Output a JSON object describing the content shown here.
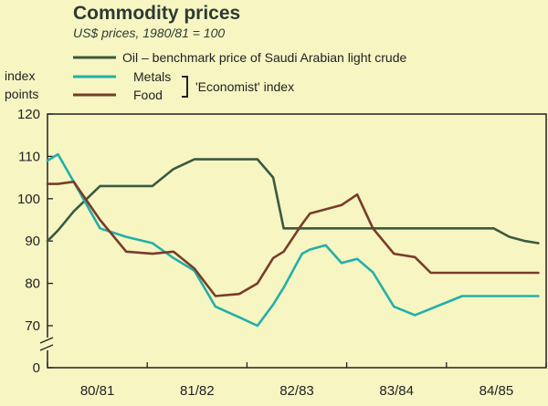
{
  "chart_data": {
    "type": "line",
    "title": "Commodity prices",
    "subtitle": "US$ prices, 1980/81 = 100",
    "ylabel_line1": "index",
    "ylabel_line2": "points",
    "ylim": [
      0,
      120
    ],
    "yticks": [
      0,
      70,
      80,
      90,
      100,
      110,
      120
    ],
    "axis_break": [
      0,
      70
    ],
    "categories": [
      "80/81",
      "81/82",
      "82/83",
      "83/84",
      "84/85"
    ],
    "xlim": [
      0,
      19
    ],
    "x": [
      0,
      0.4,
      1,
      2,
      3,
      4,
      4.8,
      5.6,
      6.4,
      7.3,
      8,
      8.6,
      9,
      9.7,
      10,
      10.6,
      11.2,
      11.8,
      12.4,
      13.2,
      14,
      14.6,
      15.2,
      15.8,
      16.4,
      17,
      17.6,
      18.2,
      18.7
    ],
    "series": [
      {
        "name": "Oil – benchmark price of Saudi Arabian light crude",
        "color": "#3a5a40",
        "values": [
          90,
          92.5,
          97,
          103,
          103,
          103,
          107,
          109.3,
          109.3,
          109.3,
          109.3,
          105,
          93,
          93,
          93,
          93,
          93,
          93,
          93,
          93,
          93,
          93,
          93,
          93,
          93,
          93,
          91,
          90,
          89.5
        ]
      },
      {
        "name": "Metals",
        "color": "#22b0a8",
        "values": [
          109,
          110.5,
          104,
          93,
          91,
          89.5,
          86,
          83,
          74.5,
          72,
          70,
          75,
          79,
          87,
          88,
          89,
          84.8,
          85.8,
          82.6,
          74.5,
          72.5,
          74,
          75.5,
          77,
          77,
          77,
          77,
          77,
          77
        ]
      },
      {
        "name": "Food",
        "color": "#7a3b2a",
        "values": [
          103.5,
          103.5,
          104,
          95,
          87.5,
          87,
          87.5,
          83.5,
          77,
          77.5,
          80,
          86,
          87.5,
          94,
          96.5,
          97.5,
          98.5,
          101,
          93,
          87,
          86.2,
          82.5,
          82.5,
          82.5,
          82.5,
          82.5,
          82.5,
          82.5,
          82.5
        ]
      }
    ],
    "bracket_label": "'Economist' index"
  }
}
